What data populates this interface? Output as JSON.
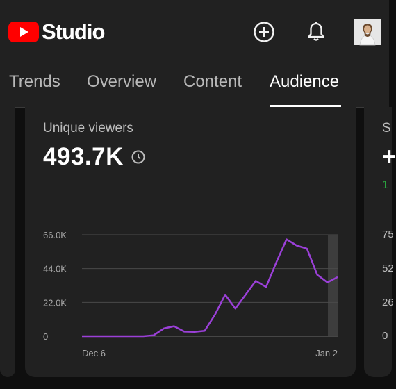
{
  "header": {
    "logo_text": "Studio",
    "brand_color": "#ff0000",
    "icons": [
      "add-circle-icon",
      "bell-icon",
      "avatar"
    ]
  },
  "tabs": [
    {
      "label": "Trends",
      "active": false
    },
    {
      "label": "Overview",
      "active": false
    },
    {
      "label": "Content",
      "active": false
    },
    {
      "label": "Audience",
      "active": true
    }
  ],
  "card": {
    "metric_label": "Unique viewers",
    "metric_value": "493.7K",
    "accent_color": "#9b40d8"
  },
  "right_card_fragment": {
    "title_initial": "S",
    "value_initial": "+",
    "delta_initial": "1",
    "delta_color": "#2ba640",
    "tick_fragments": [
      "75",
      "52",
      "26",
      "0"
    ]
  },
  "chart_data": {
    "type": "line",
    "x_start_label": "Dec 6",
    "x_end_label": "Jan 2",
    "ytick_labels": [
      "66.0K",
      "44.0K",
      "22.0K",
      "0"
    ],
    "ylim": [
      0,
      66000
    ],
    "grid": true,
    "highlight_last_point": true,
    "series": [
      {
        "values": [
          0,
          0,
          0,
          0,
          0,
          0,
          0,
          600,
          5000,
          6500,
          3000,
          2800,
          3500,
          14000,
          27000,
          18000,
          27000,
          36000,
          32000,
          48000,
          63000,
          59000,
          57000,
          40000,
          35000,
          38500
        ]
      }
    ]
  }
}
